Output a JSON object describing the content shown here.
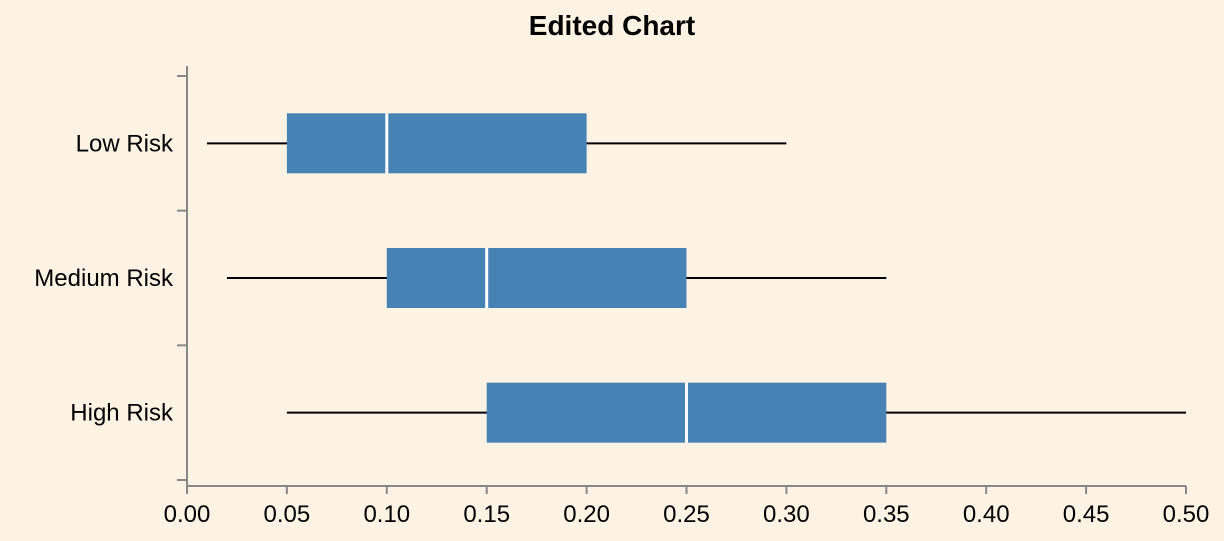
{
  "chart_data": {
    "type": "boxplot",
    "orientation": "horizontal",
    "title": "Edited Chart",
    "xlabel": "",
    "ylabel": "",
    "xlim": [
      0.0,
      0.5
    ],
    "x_ticks": [
      "0.00",
      "0.05",
      "0.10",
      "0.15",
      "0.20",
      "0.25",
      "0.30",
      "0.35",
      "0.40",
      "0.45",
      "0.50"
    ],
    "categories": [
      "Low Risk",
      "Medium Risk",
      "High Risk"
    ],
    "boxes": [
      {
        "category": "Low Risk",
        "min": 0.01,
        "q1": 0.05,
        "median": 0.1,
        "q3": 0.2,
        "max": 0.3
      },
      {
        "category": "Medium Risk",
        "min": 0.02,
        "q1": 0.1,
        "median": 0.15,
        "q3": 0.25,
        "max": 0.35
      },
      {
        "category": "High Risk",
        "min": 0.05,
        "q1": 0.15,
        "median": 0.25,
        "q3": 0.35,
        "max": 0.5
      }
    ],
    "colors": {
      "box": "#4682b4",
      "median": "#ffffff",
      "whisker": "#000000",
      "background": "#fdf3e4",
      "axis": "#888888"
    },
    "grid": false,
    "legend": "none"
  }
}
